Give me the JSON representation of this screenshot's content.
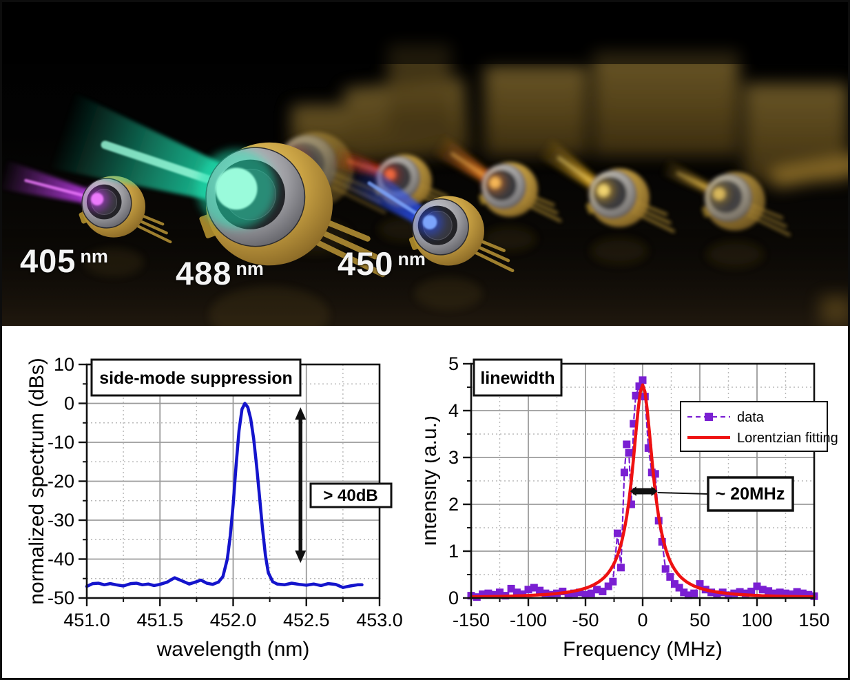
{
  "figure": {
    "photo": {
      "labels": [
        {
          "value": "405",
          "unit": "nm"
        },
        {
          "value": "488",
          "unit": "nm"
        },
        {
          "value": "450",
          "unit": "nm"
        }
      ],
      "beam_colors": {
        "violet": "#c43df2",
        "violet_core": "#f07bff",
        "teal": "#1fe0b0",
        "teal_core": "#9effdf",
        "red": "#e83214",
        "red_core": "#ff7040",
        "blue": "#2a50f5",
        "blue_core": "#7fa8ff",
        "orange": "#ff821c",
        "orange_core": "#ffc05a",
        "yellow": "#f5b81e",
        "yellow_core": "#ffe27a",
        "gold": "#d3a32a",
        "gold_core": "#ffd96a"
      }
    }
  },
  "chart_data": [
    {
      "type": "line",
      "title": "side-mode suppression",
      "xlabel": "wavelength (nm)",
      "ylabel": "normalized spectrum (dBs)",
      "xlim": [
        451.0,
        453.0
      ],
      "ylim": [
        -50,
        10
      ],
      "xticks": [
        451.0,
        451.5,
        452.0,
        452.5,
        453.0
      ],
      "xtick_labels": [
        "451.0",
        "451.5",
        "452.0",
        "452.5",
        "453.0"
      ],
      "yticks": [
        10,
        0,
        -10,
        -20,
        -30,
        -40,
        -50
      ],
      "ytick_labels": [
        "10",
        "0",
        "-10",
        "-20",
        "-30",
        "-40",
        "-50"
      ],
      "grid": {
        "major": "solid",
        "minor": "dotted",
        "minor_x": 0.25,
        "minor_y": 5
      },
      "series": [
        {
          "name": "spectrum",
          "color": "#1414cc",
          "points": [
            [
              451.0,
              -47.0
            ],
            [
              451.04,
              -46.3
            ],
            [
              451.08,
              -46.2
            ],
            [
              451.12,
              -46.6
            ],
            [
              451.16,
              -46.3
            ],
            [
              451.2,
              -46.6
            ],
            [
              451.25,
              -46.9
            ],
            [
              451.3,
              -46.3
            ],
            [
              451.34,
              -46.2
            ],
            [
              451.38,
              -46.6
            ],
            [
              451.42,
              -46.4
            ],
            [
              451.46,
              -46.8
            ],
            [
              451.5,
              -46.5
            ],
            [
              451.55,
              -45.9
            ],
            [
              451.6,
              -44.8
            ],
            [
              451.65,
              -45.6
            ],
            [
              451.7,
              -46.4
            ],
            [
              451.75,
              -45.8
            ],
            [
              451.78,
              -45.4
            ],
            [
              451.82,
              -46.2
            ],
            [
              451.86,
              -46.5
            ],
            [
              451.9,
              -45.9
            ],
            [
              451.93,
              -44.5
            ],
            [
              451.96,
              -40.0
            ],
            [
              451.98,
              -34.0
            ],
            [
              452.0,
              -26.0
            ],
            [
              452.02,
              -16.0
            ],
            [
              452.04,
              -7.0
            ],
            [
              452.06,
              -1.5
            ],
            [
              452.08,
              0.0
            ],
            [
              452.1,
              -1.0
            ],
            [
              452.12,
              -4.0
            ],
            [
              452.14,
              -9.0
            ],
            [
              452.16,
              -16.0
            ],
            [
              452.18,
              -24.0
            ],
            [
              452.2,
              -32.0
            ],
            [
              452.22,
              -39.0
            ],
            [
              452.24,
              -43.5
            ],
            [
              452.27,
              -45.8
            ],
            [
              452.3,
              -46.4
            ],
            [
              452.35,
              -46.6
            ],
            [
              452.4,
              -46.2
            ],
            [
              452.45,
              -46.5
            ],
            [
              452.5,
              -46.7
            ],
            [
              452.55,
              -46.4
            ],
            [
              452.6,
              -46.8
            ],
            [
              452.65,
              -46.3
            ],
            [
              452.7,
              -46.5
            ],
            [
              452.75,
              -47.3
            ],
            [
              452.8,
              -46.9
            ],
            [
              452.85,
              -46.6
            ],
            [
              452.88,
              -46.6
            ]
          ]
        }
      ],
      "annotations": {
        "kind": "smsr-arrow",
        "arrow": {
          "x": 452.46,
          "y1": -1,
          "y2": -41
        },
        "label": "> 40dB"
      }
    },
    {
      "type": "scatter",
      "title": "linewidth",
      "xlabel": "Frequency (MHz)",
      "ylabel": "Intensity (a.u.)",
      "xlim": [
        -150,
        150
      ],
      "ylim": [
        0,
        5
      ],
      "xticks": [
        -150,
        -100,
        -50,
        0,
        50,
        100,
        150
      ],
      "xtick_labels": [
        "-150",
        "-100",
        "-50",
        "0",
        "50",
        "100",
        "150"
      ],
      "yticks": [
        0,
        1,
        2,
        3,
        4,
        5
      ],
      "ytick_labels": [
        "0",
        "1",
        "2",
        "3",
        "4",
        "5"
      ],
      "grid": {
        "major": "solid",
        "minor": "dotted",
        "minor_x": 25,
        "minor_y": 0.5
      },
      "legend": {
        "position": "upper-right",
        "entries": [
          "data",
          "Lorentzian fitting"
        ]
      },
      "series": [
        {
          "name": "data",
          "color": "#7a1fd2",
          "marker": "square",
          "line": "dashed",
          "points": [
            [
              -150,
              0.05
            ],
            [
              -145,
              0.02
            ],
            [
              -140,
              0.08
            ],
            [
              -135,
              0.1
            ],
            [
              -130,
              0.07
            ],
            [
              -125,
              0.12
            ],
            [
              -120,
              0.05
            ],
            [
              -115,
              0.2
            ],
            [
              -110,
              0.12
            ],
            [
              -105,
              0.08
            ],
            [
              -100,
              0.18
            ],
            [
              -95,
              0.22
            ],
            [
              -90,
              0.16
            ],
            [
              -85,
              0.1
            ],
            [
              -80,
              0.07
            ],
            [
              -75,
              0.1
            ],
            [
              -70,
              0.14
            ],
            [
              -65,
              0.06
            ],
            [
              -60,
              0.1
            ],
            [
              -55,
              0.12
            ],
            [
              -50,
              0.07
            ],
            [
              -45,
              0.1
            ],
            [
              -40,
              0.18
            ],
            [
              -35,
              0.14
            ],
            [
              -30,
              0.25
            ],
            [
              -26,
              0.35
            ],
            [
              -22,
              1.38
            ],
            [
              -19,
              0.65
            ],
            [
              -16,
              2.68
            ],
            [
              -14,
              3.28
            ],
            [
              -12,
              3.1
            ],
            [
              -10,
              2.0
            ],
            [
              -8,
              3.72
            ],
            [
              -6,
              4.32
            ],
            [
              -3,
              4.52
            ],
            [
              0,
              4.65
            ],
            [
              2,
              4.3
            ],
            [
              5,
              3.2
            ],
            [
              8,
              2.68
            ],
            [
              11,
              2.65
            ],
            [
              14,
              1.65
            ],
            [
              17,
              1.2
            ],
            [
              20,
              0.62
            ],
            [
              24,
              0.45
            ],
            [
              28,
              0.3
            ],
            [
              32,
              0.22
            ],
            [
              36,
              0.12
            ],
            [
              40,
              0.06
            ],
            [
              45,
              0.1
            ],
            [
              50,
              0.3
            ],
            [
              55,
              0.18
            ],
            [
              60,
              0.12
            ],
            [
              65,
              0.08
            ],
            [
              70,
              0.12
            ],
            [
              75,
              0.06
            ],
            [
              80,
              0.1
            ],
            [
              85,
              0.13
            ],
            [
              90,
              0.1
            ],
            [
              95,
              0.14
            ],
            [
              100,
              0.25
            ],
            [
              105,
              0.18
            ],
            [
              110,
              0.15
            ],
            [
              115,
              0.1
            ],
            [
              120,
              0.12
            ],
            [
              125,
              0.1
            ],
            [
              130,
              0.08
            ],
            [
              135,
              0.13
            ],
            [
              140,
              0.1
            ],
            [
              145,
              0.07
            ],
            [
              150,
              0.04
            ]
          ]
        },
        {
          "name": "Lorentzian fitting",
          "color": "#ee1111",
          "lorentzian": {
            "amplitude": 4.55,
            "center": 0,
            "fwhm": 22
          }
        }
      ],
      "annotations": {
        "kind": "width-bar",
        "bar": {
          "x1": -11,
          "x2": 13,
          "y": 2.28
        },
        "label": "~ 20MHz"
      }
    }
  ]
}
